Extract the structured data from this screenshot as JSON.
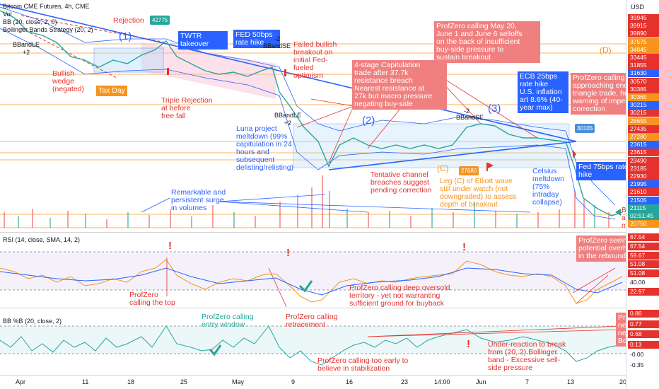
{
  "header": {
    "symbol_line": "Bitcoin CME Futures, 4h, CME",
    "vol_line": "Vol",
    "bb_line": "BB (20, close, 2, 0)",
    "bbs_line": "Bollinger Bands Strategy (20, 2)"
  },
  "currency": "USD",
  "price_labels": [
    {
      "text": "39945",
      "color": "#e5322d"
    },
    {
      "text": "39915",
      "color": "#e5322d"
    },
    {
      "text": "39890",
      "color": "#e5322d"
    },
    {
      "text": "37575",
      "color": "#f7941d"
    },
    {
      "text": "34845",
      "color": "#f7941d"
    },
    {
      "text": "33445",
      "color": "#e5322d"
    },
    {
      "text": "31855",
      "color": "#e5322d"
    },
    {
      "text": "31630",
      "color": "#2962ff"
    },
    {
      "text": "30570",
      "color": "#e5322d"
    },
    {
      "text": "30385",
      "color": "#e5322d"
    },
    {
      "text": "30365",
      "color": "#f7941d"
    },
    {
      "text": "30215",
      "color": "#2962ff"
    },
    {
      "text": "30215",
      "color": "#e5322d"
    },
    {
      "text": "28655",
      "color": "#f7941d"
    },
    {
      "text": "27435",
      "color": "#e5322d"
    },
    {
      "text": "27280",
      "color": "#f7941d"
    },
    {
      "text": "23615",
      "color": "#2962ff"
    },
    {
      "text": "23615",
      "color": "#e5322d"
    },
    {
      "text": "23490",
      "color": "#e5322d"
    },
    {
      "text": "23185",
      "color": "#e5322d"
    },
    {
      "text": "22930",
      "color": "#e5322d"
    },
    {
      "text": "21995",
      "color": "#2962ff"
    },
    {
      "text": "21610",
      "color": "#e5322d"
    },
    {
      "text": "21505",
      "color": "#2962ff"
    },
    {
      "text": "21115",
      "color": "#26a69a"
    },
    {
      "text": "02:51:45",
      "color": "#26a69a"
    },
    {
      "text": "20750",
      "color": "#f7941d"
    }
  ],
  "rsi_labels": [
    {
      "text": "67.54",
      "color": "#e5322d"
    },
    {
      "text": "67.54",
      "color": "#e5322d"
    },
    {
      "text": "59.67",
      "color": "#e5322d"
    },
    {
      "text": "51.08",
      "color": "#e5322d"
    },
    {
      "text": "51.08",
      "color": "#e5322d"
    },
    {
      "text": "40.00",
      "color": "#131722"
    },
    {
      "text": "22.97",
      "color": "#e5322d"
    }
  ],
  "bbp_labels": [
    {
      "text": "0.86",
      "color": "#e5322d"
    },
    {
      "text": "0.77",
      "color": "#e5322d"
    },
    {
      "text": "0.68",
      "color": "#e5322d"
    },
    {
      "text": "0.13",
      "color": "#e5322d"
    },
    {
      "text": "-0.00",
      "color": "#131722"
    },
    {
      "text": "-0.35",
      "color": "#131722"
    }
  ],
  "dates": [
    "Apr",
    "11",
    "18",
    "25",
    "May",
    "9",
    "16",
    "23",
    "14:00",
    "Jun",
    "7",
    "13",
    "20"
  ],
  "rsi_header": "RSI (14, close, SMA, 14, 2)",
  "bbp_header": "BB %B (20, close, 2)",
  "annotations": {
    "rejection": "Rejection",
    "bb_left": "BBandLE\n+2",
    "wave1": "(1)",
    "wave2": "(2)",
    "wave3": "(3)",
    "waveC": "(C)",
    "waveD": "(D)",
    "bullish_wedge": "Bullish\nwedge\n(negated)",
    "tax_day": "Tax Day",
    "price_tag_1": "42775",
    "twtr": "TWTR takeover",
    "fed50": "FED 50bps\nrate hike",
    "minus2": "-2",
    "bbse1": "BBandSE",
    "failed_bullish": "Failed bullish\nbreakout on\ninitial Fed-\nfueled\noptimism",
    "triple": "Triple Rejection\nat before\nfree fall",
    "bb_mid": "BBandLE\n+2",
    "luna": "Luna project\nmeltdown (99%\ncapitulation in 24\nhours and\nsubsequent\ndelisting/relisting)",
    "capitulation": "4-stage Capitulation\ntrade after 37.7k\nresistance breach\nNearest resistance at\n27k but macro pressure\nnegating buy-side",
    "profzero_may": "ProfZero calling May 20,\nJune 1 and June 6 selloffs\non the back of insufficient\nbuy-side pressure to\nsustain breakout",
    "ecb": "ECB 25bps\nrate hike\nU.S. inflation\nart 8.6% (40-\nyear max)",
    "profzero_tri": "ProfZero calling\napproaching end of\ntriangle trade, hence\nwarning of impending\ncorrection",
    "minus2b": "-2",
    "bbse2": "BBandSE",
    "price_tag_2": "30105",
    "tentative": "Tentative channel\nbreaches suggest\npending correction",
    "price_tag_3": "27680",
    "legC": "Leg (C) of Elliott wave\nstill under watch (not\ndowngraded) to assess\ndepth of breakout",
    "celsius": "Celsius\nmeltdown\n(75%\nintraday\ncollapse)",
    "fed75": "Fed 75bps rate\nhike",
    "remarkable": "Remarkable and\npersistent surge\nin volumes",
    "right_edge": "B\nar\nm",
    "rsi_top": "ProfZero\ncalling the top",
    "rsi_deep": "ProfZero calling deep oversold\nterritory - yet not warranting\nsufficient ground for buyback",
    "rsi_rebound": "ProfZero seeing\npotential overheat\nin the rebound",
    "bbp_entry": "ProfZero calling\nentry window",
    "bbp_retrace": "ProfZero calling\nretracement",
    "bbp_early": "ProfZero calling too early to\nbelieve in stabilization",
    "bbp_under": "Under-reaction to break\nfrom (20, 2) Bollinger\nband - Excessive sell-\nside pressure",
    "bbp_right": "Pro\nne\nnea\nBo"
  },
  "colors": {
    "up": "#26a69a",
    "down": "#ef5350",
    "blue": "#2962ff",
    "red": "#e5322d",
    "orange": "#f7941d",
    "green": "#26a69a"
  }
}
